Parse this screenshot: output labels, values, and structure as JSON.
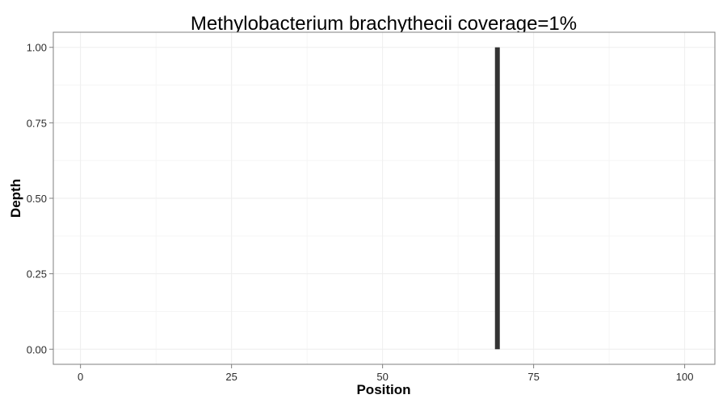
{
  "chart_data": {
    "type": "bar",
    "title": "Methylobacterium brachythecii coverage=1%",
    "xlabel": "Position",
    "ylabel": "Depth",
    "xlim": [
      -4.5,
      105
    ],
    "ylim": [
      -0.05,
      1.05
    ],
    "x_ticks": [
      0,
      25,
      50,
      75,
      100
    ],
    "x_tick_labels": [
      "0",
      "25",
      "50",
      "75",
      "100"
    ],
    "y_ticks": [
      0,
      0.25,
      0.5,
      0.75,
      1
    ],
    "y_tick_labels": [
      "0.00",
      "0.25",
      "0.50",
      "0.75",
      "1.00"
    ],
    "grid": true,
    "series": [
      {
        "color": "#333333",
        "points": [
          {
            "x": 69,
            "y": 1
          }
        ]
      }
    ]
  }
}
